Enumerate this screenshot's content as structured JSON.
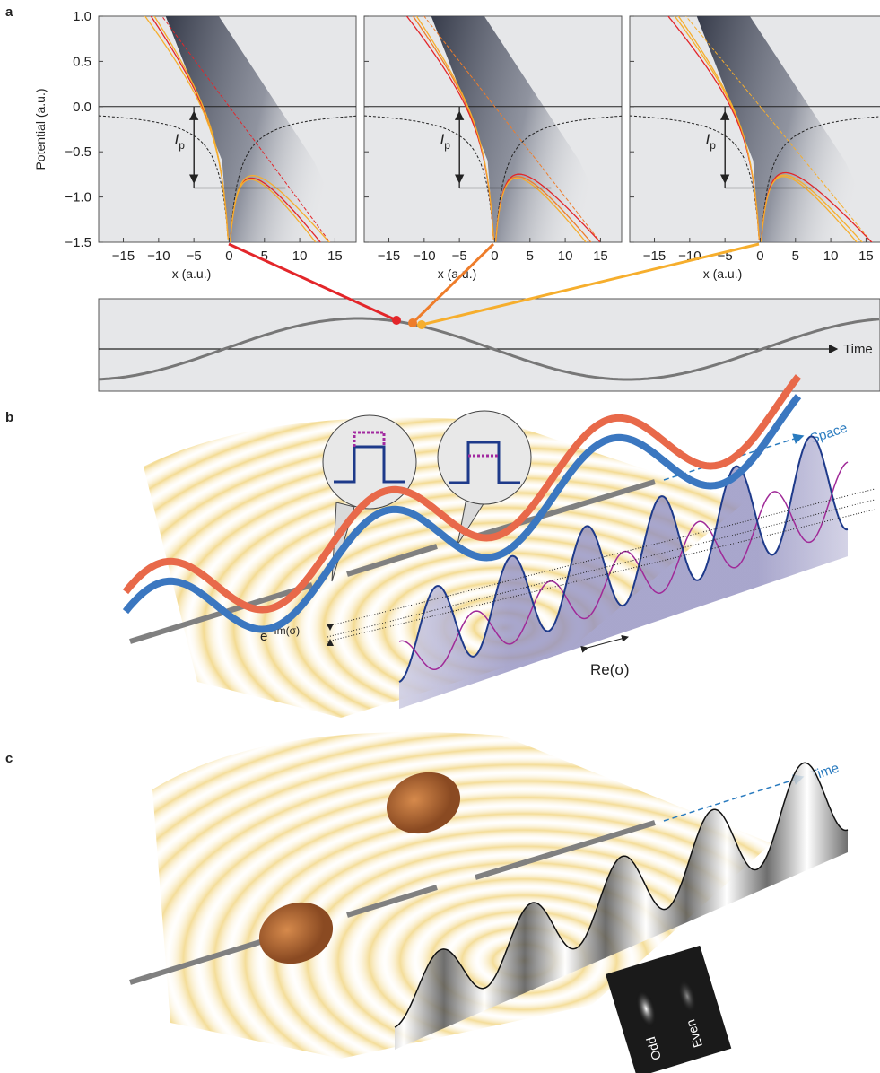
{
  "panel_a": {
    "label": "a",
    "y_label": "Potential (a.u.)",
    "ylim": [
      -1.5,
      1.0
    ],
    "xlim": [
      -18.5,
      18
    ],
    "yticks": [
      {
        "value": 1.0,
        "label": "1.0"
      },
      {
        "value": 0.5,
        "label": "0.5"
      },
      {
        "value": 0.0,
        "label": "0.0"
      },
      {
        "value": -0.5,
        "label": "−0.5"
      },
      {
        "value": -1.0,
        "label": "−1.0"
      },
      {
        "value": -1.5,
        "label": "−1.5"
      }
    ],
    "xticks": [
      {
        "value": -15,
        "label": "−15"
      },
      {
        "value": -10,
        "label": "−10"
      },
      {
        "value": -5,
        "label": "−5"
      },
      0,
      5,
      10,
      15
    ],
    "x_label": "x (a.u.)",
    "ip_label": {
      "symbol": "I",
      "subscript": "p"
    },
    "time_label": "Time"
  },
  "panel_b": {
    "label": "b",
    "space_label": "Space",
    "im_label": {
      "base": "e",
      "exponent": "−Im(σ)"
    },
    "re_label": "Re(σ)"
  },
  "panel_c": {
    "label": "c",
    "time_label": "Time",
    "odd_label": "Odd",
    "even_label": "Even"
  }
}
